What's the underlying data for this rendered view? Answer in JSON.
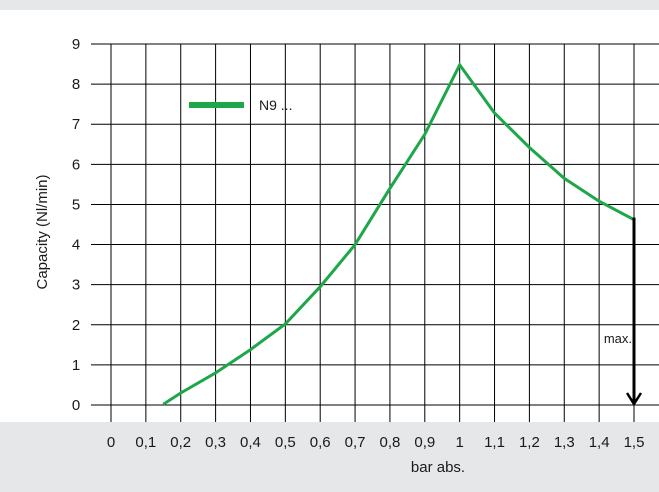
{
  "chart_data": {
    "type": "line",
    "title": "",
    "xlabel": "bar abs.",
    "ylabel": "Capacity (Nl/min)",
    "x_ticks": [
      "0",
      "0,1",
      "0,2",
      "0,3",
      "0,4",
      "0,5",
      "0,6",
      "0,7",
      "0,8",
      "0,9",
      "1",
      "1,1",
      "1,2",
      "1,3",
      "1,4",
      "1,5"
    ],
    "y_ticks": [
      "0",
      "1",
      "2",
      "3",
      "4",
      "5",
      "6",
      "7",
      "8",
      "9"
    ],
    "xlim": [
      0,
      1.5
    ],
    "ylim": [
      0,
      9
    ],
    "grid": true,
    "legend": "top-left",
    "series": [
      {
        "name": "N9 ...",
        "color": "#1ea74a",
        "x": [
          0.15,
          0.2,
          0.3,
          0.4,
          0.5,
          0.6,
          0.7,
          0.8,
          0.9,
          1.0,
          1.1,
          1.2,
          1.3,
          1.4,
          1.5
        ],
        "y": [
          0.02,
          0.3,
          0.8,
          1.38,
          2.02,
          2.95,
          4.0,
          5.4,
          6.75,
          8.48,
          7.28,
          6.42,
          5.65,
          5.08,
          4.62
        ]
      }
    ],
    "annotations": [
      {
        "text": "max.",
        "x": 1.5,
        "y_from": 4.62,
        "y_to": 0,
        "arrow": "down"
      }
    ]
  }
}
